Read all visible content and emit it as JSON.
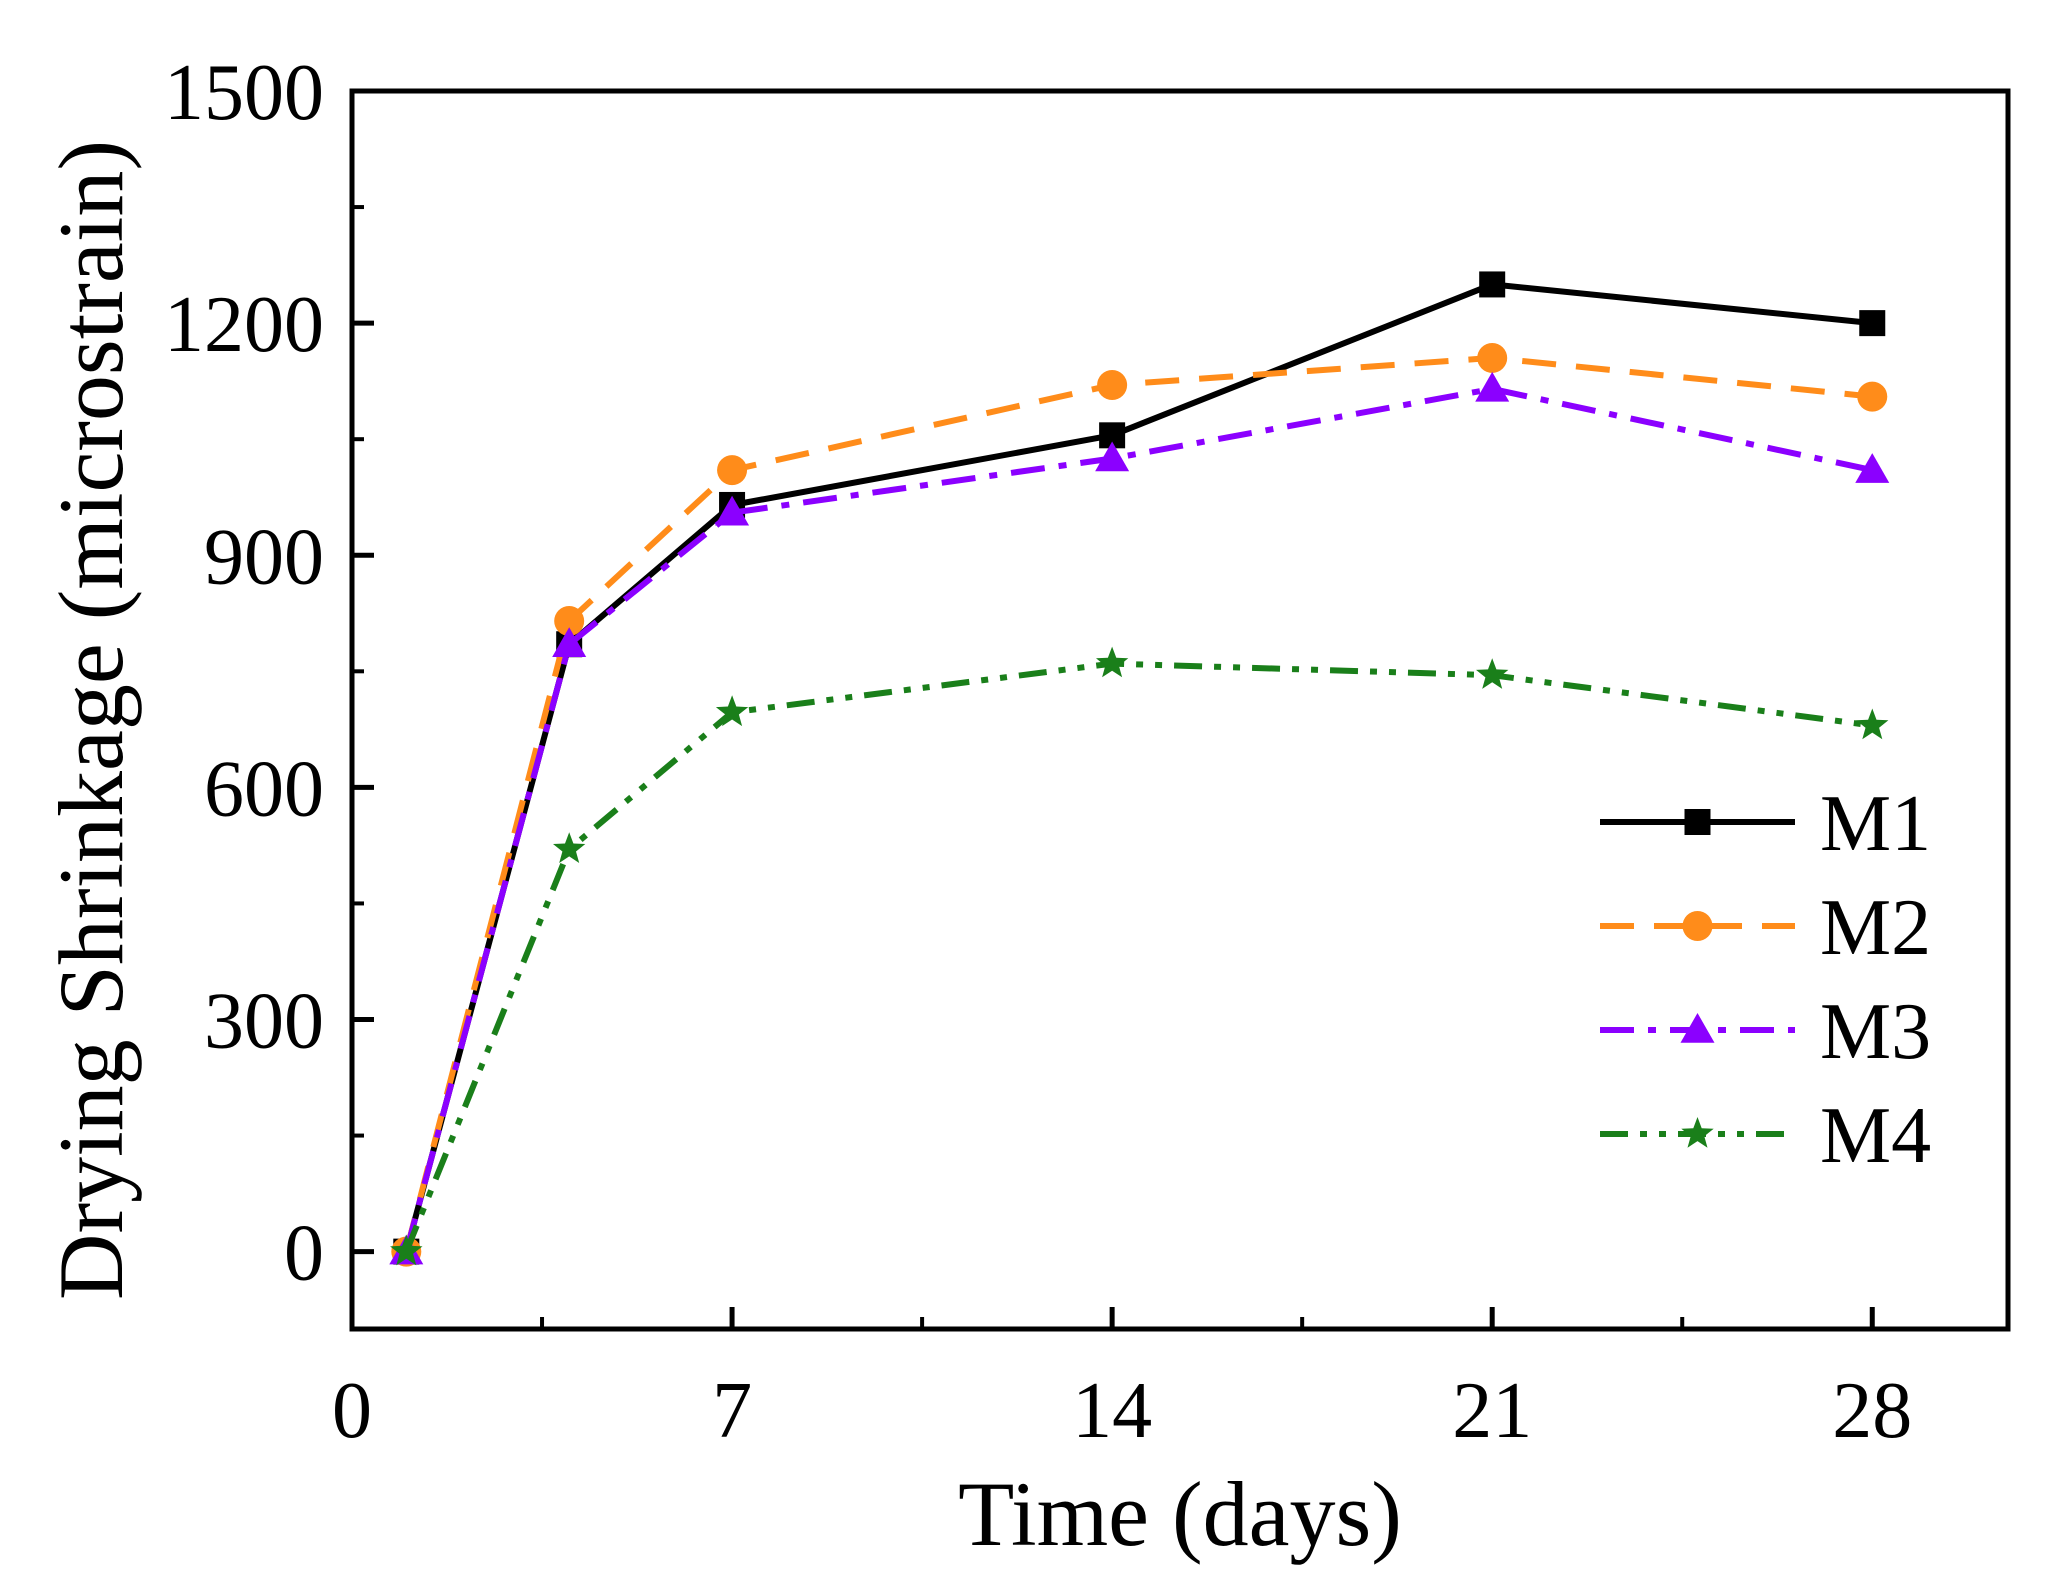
{
  "chart_data": {
    "type": "line",
    "title": "",
    "xlabel": "Time (days)",
    "ylabel": "Drying Shrinkage (microstrain)",
    "xlim": [
      0,
      30.5
    ],
    "ylim": [
      -100,
      1500
    ],
    "xticks": [
      0,
      7,
      14,
      21,
      28
    ],
    "xtick_labels": [
      "0",
      "7",
      "14",
      "21",
      "28"
    ],
    "yticks": [
      0,
      300,
      600,
      900,
      1200,
      1500
    ],
    "ytick_labels": [
      "0",
      "300",
      "600",
      "900",
      "1200",
      "1500"
    ],
    "x": [
      1,
      4,
      7,
      14,
      21,
      28
    ],
    "legend_position": "center-right",
    "series": [
      {
        "name": "M1",
        "color": "#000000",
        "marker": "square",
        "dash": "solid",
        "values": [
          0,
          785,
          965,
          1055,
          1250,
          1200
        ]
      },
      {
        "name": "M2",
        "color": "#ff8c1a",
        "marker": "circle",
        "dash": "dash",
        "values": [
          0,
          815,
          1010,
          1120,
          1155,
          1105
        ]
      },
      {
        "name": "M3",
        "color": "#8b00ff",
        "marker": "triangle",
        "dash": "dashdot",
        "values": [
          0,
          785,
          955,
          1025,
          1115,
          1010
        ]
      },
      {
        "name": "M4",
        "color": "#1a7f1a",
        "marker": "star",
        "dash": "dashdotdot",
        "values": [
          0,
          520,
          697,
          760,
          745,
          680
        ]
      }
    ]
  }
}
